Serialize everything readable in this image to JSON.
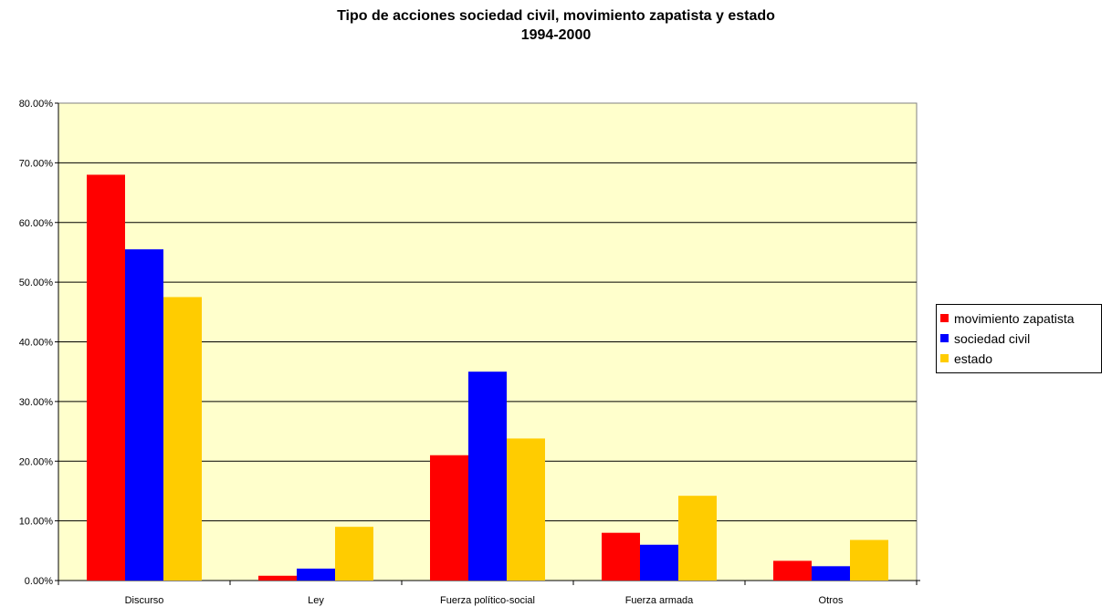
{
  "chart_data": {
    "type": "bar",
    "title": "Tipo de acciones sociedad civil, movimiento zapatista y estado",
    "subtitle": "1994-2000",
    "categories": [
      "Discurso",
      "Ley",
      "Fuerza político-social",
      "Fuerza armada",
      "Otros"
    ],
    "series": [
      {
        "name": "movimiento zapatista",
        "color": "#ff0000",
        "values": [
          0.68,
          0.008,
          0.21,
          0.08,
          0.033
        ]
      },
      {
        "name": "sociedad civil",
        "color": "#0000ff",
        "values": [
          0.555,
          0.02,
          0.35,
          0.06,
          0.024
        ]
      },
      {
        "name": "estado",
        "color": "#ffcc00",
        "values": [
          0.475,
          0.09,
          0.238,
          0.142,
          0.068
        ]
      }
    ],
    "y_ticks": [
      "0.00%",
      "10.00%",
      "20.00%",
      "30.00%",
      "40.00%",
      "50.00%",
      "60.00%",
      "70.00%",
      "80.00%"
    ],
    "ylim": [
      0,
      0.8
    ],
    "plot_background": "#ffffcc",
    "grid": true,
    "legend_position": "right"
  }
}
